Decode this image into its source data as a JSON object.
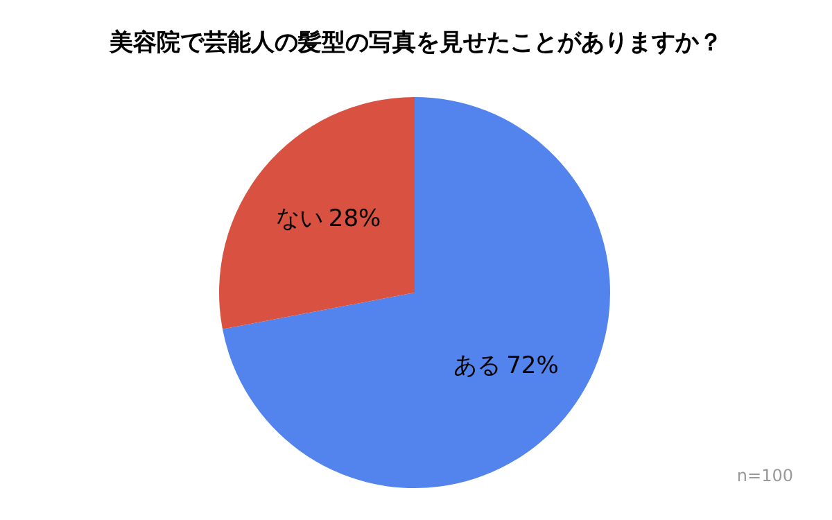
{
  "chart_data": {
    "type": "pie",
    "title": "美容院で芸能人の髪型の写真を見せたことがありますか？",
    "categories": [
      "ある",
      "ない"
    ],
    "values": [
      72,
      28
    ],
    "colors": [
      "#5383ec",
      "#d95140"
    ],
    "value_labels": [
      "72%",
      "28%"
    ],
    "legend": false,
    "annotations": [
      "n=100"
    ]
  }
}
